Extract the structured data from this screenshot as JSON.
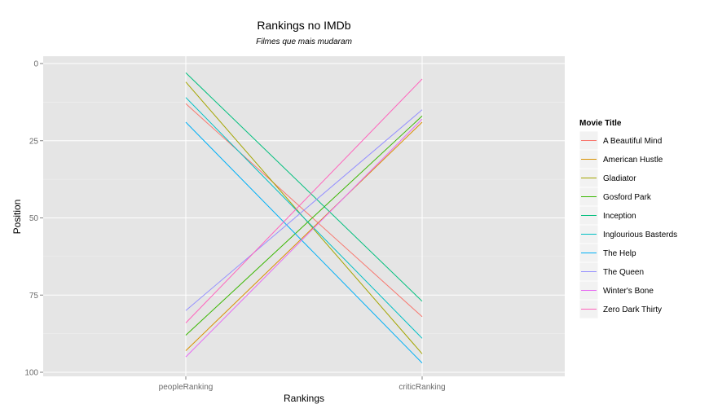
{
  "chart_data": {
    "type": "line",
    "title": "Rankings no IMDb",
    "subtitle": "Filmes que mais mudaram",
    "xlabel": "Rankings",
    "ylabel": "Position",
    "categories": [
      "peopleRanking",
      "criticRanking"
    ],
    "ylim": [
      0,
      100
    ],
    "y_reversed": true,
    "y_ticks": [
      0,
      25,
      50,
      75,
      100
    ],
    "grid": true,
    "legend_position": "right",
    "legend_title": "Movie Title",
    "series": [
      {
        "name": "A Beautiful Mind",
        "values": [
          13,
          82
        ],
        "color": "#F8766D"
      },
      {
        "name": "American Hustle",
        "values": [
          93,
          19
        ],
        "color": "#D89000"
      },
      {
        "name": "Gladiator",
        "values": [
          6,
          94
        ],
        "color": "#A3A500"
      },
      {
        "name": "Gosford Park",
        "values": [
          88,
          17
        ],
        "color": "#39B600"
      },
      {
        "name": "Inception",
        "values": [
          3,
          77
        ],
        "color": "#00BF7D"
      },
      {
        "name": "Inglourious Basterds",
        "values": [
          11,
          89
        ],
        "color": "#00BFC4"
      },
      {
        "name": "The Help",
        "values": [
          19,
          97
        ],
        "color": "#00B0F6"
      },
      {
        "name": "The Queen",
        "values": [
          80,
          15
        ],
        "color": "#9590FF"
      },
      {
        "name": "Winter's Bone",
        "values": [
          95,
          18
        ],
        "color": "#E76BF3"
      },
      {
        "name": "Zero Dark Thirty",
        "values": [
          84,
          5
        ],
        "color": "#FF62BC"
      }
    ]
  }
}
